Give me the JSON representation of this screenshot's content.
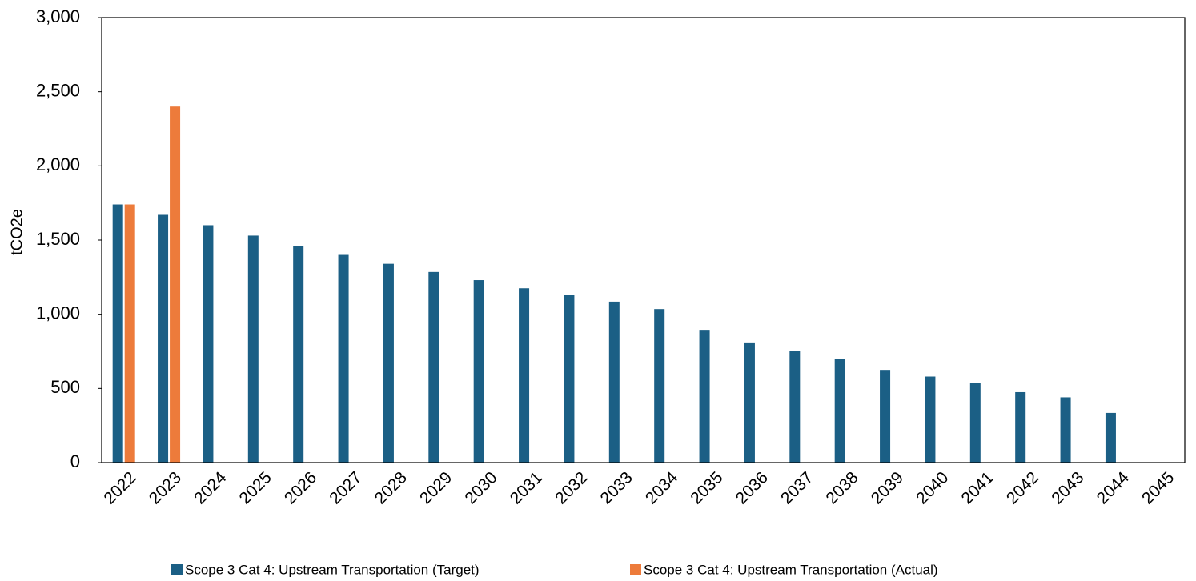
{
  "chart_data": {
    "type": "bar",
    "y_label": "tCO2e",
    "categories": [
      "2022",
      "2023",
      "2024",
      "2025",
      "2026",
      "2027",
      "2028",
      "2029",
      "2030",
      "2031",
      "2032",
      "2033",
      "2034",
      "2035",
      "2036",
      "2037",
      "2038",
      "2039",
      "2040",
      "2041",
      "2042",
      "2043",
      "2044",
      "2045"
    ],
    "series": [
      {
        "name": "Scope 3 Cat 4: Upstream Transportation (Target)",
        "color": "#1b5f85",
        "values": [
          1740,
          1670,
          1600,
          1530,
          1460,
          1400,
          1340,
          1285,
          1230,
          1175,
          1130,
          1085,
          1035,
          895,
          810,
          755,
          700,
          625,
          580,
          535,
          475,
          440,
          335,
          null
        ]
      },
      {
        "name": "Scope 3 Cat 4: Upstream Transportation (Actual)",
        "color": "#ed7b3b",
        "values": [
          1740,
          2400,
          null,
          null,
          null,
          null,
          null,
          null,
          null,
          null,
          null,
          null,
          null,
          null,
          null,
          null,
          null,
          null,
          null,
          null,
          null,
          null,
          null,
          null
        ]
      }
    ],
    "ylim": [
      0,
      3000
    ],
    "yticks": [
      0,
      500,
      {
        "value": 1000,
        "label": "1,000"
      },
      {
        "value": 1500,
        "label": "1,500"
      },
      {
        "value": 2000,
        "label": "2,000"
      },
      {
        "value": 2500,
        "label": "2,500"
      },
      {
        "value": 3000,
        "label": "3,000"
      }
    ],
    "grid": false,
    "legend": "bottom"
  }
}
